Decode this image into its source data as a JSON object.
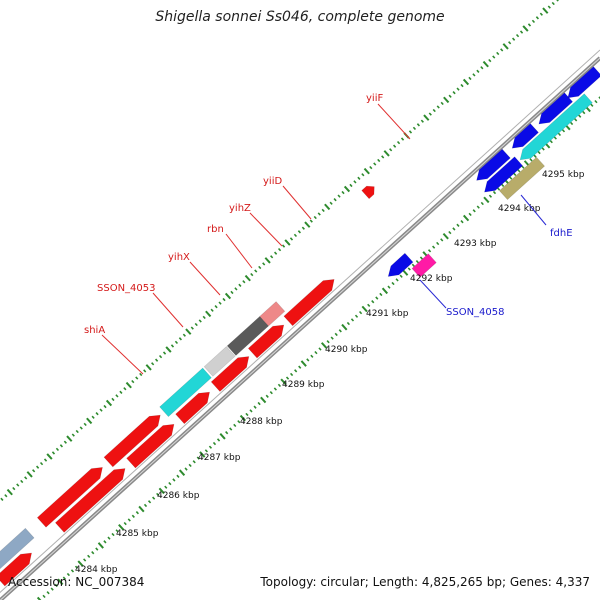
{
  "title": "Shigella sonnei Ss046, complete genome",
  "accession": "Accession: NC_007384",
  "topology": "Topology: circular",
  "length": "Length: 4,825,265 bp",
  "genes": "Genes: 4,337",
  "colors": {
    "background": "#ffffff",
    "backbone": "#8c8c8c",
    "tick": "#2e8b2e",
    "forward_label": "#d41a1a",
    "reverse_label": "#1a1acc",
    "red_gene": "#ee1111",
    "blue_gene": "#0a0ae6",
    "cyan_gene": "#22d6d6",
    "light_gray_gene": "#d0d0d0",
    "dark_gray_gene": "#5a5a5a",
    "pink_gene": "#ee8888",
    "magenta_gene": "#ff1aa6",
    "olive_gene": "#b8ac6a",
    "steel_gene": "#8ea8c4"
  },
  "scale_labels": [
    "4284 kbp",
    "4285 kbp",
    "4286 kbp",
    "4287 kbp",
    "4288 kbp",
    "4289 kbp",
    "4290 kbp",
    "4291 kbp",
    "4292 kbp",
    "4293 kbp",
    "4294 kbp",
    "4295 kbp"
  ],
  "forward_gene_labels": [
    "shiA",
    "SSON_4053",
    "yihX",
    "rbn",
    "yihZ",
    "yiiD",
    "yiiF"
  ],
  "reverse_gene_labels": [
    "SSON_4058",
    "fdhE"
  ]
}
